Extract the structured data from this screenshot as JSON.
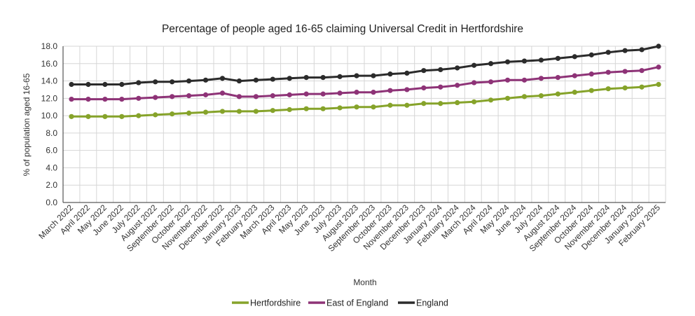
{
  "chart_data": {
    "type": "line",
    "title": "Percentage of people aged 16-65 claiming Universal Credit in Hertfordshire",
    "xlabel": "Month",
    "ylabel": "% of population aged 16-65",
    "ylim": [
      0,
      18
    ],
    "yticks": [
      "0.0",
      "2.0",
      "4.0",
      "6.0",
      "8.0",
      "10.0",
      "12.0",
      "14.0",
      "16.0",
      "18.0"
    ],
    "grid": "vertical and horizontal",
    "legend_position": "bottom",
    "categories": [
      "March 2022",
      "April 2022",
      "May 2022",
      "June 2022",
      "July 2022",
      "August 2022",
      "September 2022",
      "October 2022",
      "November 2022",
      "December 2022",
      "January 2023",
      "February 2023",
      "March 2023",
      "April 2023",
      "May 2023",
      "June 2023",
      "July 2023",
      "August 2023",
      "September 2023",
      "October 2023",
      "November 2023",
      "December 2023",
      "January 2024",
      "February 2024",
      "March 2024",
      "April 2024",
      "May 2024",
      "June 2024",
      "July 2024",
      "August 2024",
      "September 2024",
      "October 2024",
      "November 2024",
      "December 2024",
      "January 2025",
      "February 2025"
    ],
    "series": [
      {
        "name": "Hertfordshire",
        "color": "#86a32a",
        "values": [
          9.9,
          9.9,
          9.9,
          9.9,
          10.0,
          10.1,
          10.2,
          10.3,
          10.4,
          10.5,
          10.5,
          10.5,
          10.6,
          10.7,
          10.8,
          10.8,
          10.9,
          11.0,
          11.0,
          11.2,
          11.2,
          11.4,
          11.4,
          11.5,
          11.6,
          11.8,
          12.0,
          12.2,
          12.3,
          12.5,
          12.7,
          12.9,
          13.1,
          13.2,
          13.3,
          13.6
        ]
      },
      {
        "name": "East of England",
        "color": "#8e3377",
        "values": [
          11.9,
          11.9,
          11.9,
          11.9,
          12.0,
          12.1,
          12.2,
          12.3,
          12.4,
          12.6,
          12.2,
          12.2,
          12.3,
          12.4,
          12.5,
          12.5,
          12.6,
          12.7,
          12.7,
          12.9,
          13.0,
          13.2,
          13.3,
          13.5,
          13.8,
          13.9,
          14.1,
          14.1,
          14.3,
          14.4,
          14.6,
          14.8,
          15.0,
          15.1,
          15.2,
          15.6
        ]
      },
      {
        "name": "England",
        "color": "#2b2b2b",
        "values": [
          13.6,
          13.6,
          13.6,
          13.6,
          13.8,
          13.9,
          13.9,
          14.0,
          14.1,
          14.3,
          14.0,
          14.1,
          14.2,
          14.3,
          14.4,
          14.4,
          14.5,
          14.6,
          14.6,
          14.8,
          14.9,
          15.2,
          15.3,
          15.5,
          15.8,
          16.0,
          16.2,
          16.3,
          16.4,
          16.6,
          16.8,
          17.0,
          17.3,
          17.5,
          17.6,
          18.0
        ]
      }
    ]
  }
}
